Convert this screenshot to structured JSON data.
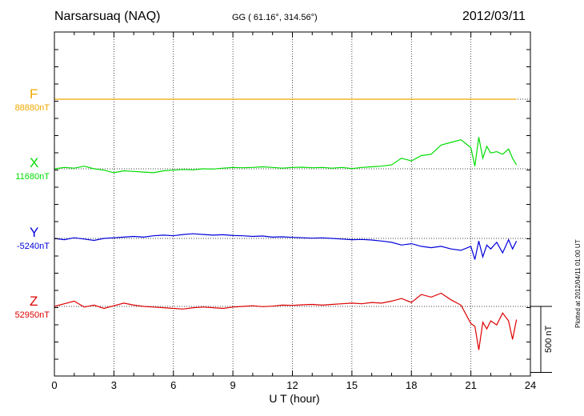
{
  "header": {
    "station": "Narsarsuaq (NAQ)",
    "coords": "GG ( 61.16°, 314.56°)",
    "date": "2012/03/11"
  },
  "footer": {
    "xlabel": "U T (hour)",
    "plotted": "Plotted at 2012/04/11 01:00 UT",
    "scale": "500 nT"
  },
  "chart_data": {
    "type": "line",
    "xlabel": "U T (hour)",
    "xlim": [
      0,
      24
    ],
    "xticks": [
      "0",
      "3",
      "6",
      "9",
      "12",
      "15",
      "18",
      "21",
      "24"
    ],
    "y_unit": "nT",
    "scale_bar_nT": 500,
    "grid": true,
    "series": [
      {
        "name": "F",
        "baseline_label": "88880nT",
        "color": "#f0a800",
        "baseline": 88880,
        "x": [
          0,
          2,
          4,
          6,
          8,
          10,
          12,
          14,
          16,
          18,
          20,
          22,
          23.3
        ],
        "y": [
          88880,
          88880,
          88880,
          88880,
          88880,
          88880,
          88880,
          88880,
          88880,
          88880,
          88880,
          88880,
          88880
        ]
      },
      {
        "name": "X",
        "baseline_label": "11680nT",
        "color": "#00dd00",
        "baseline": 11680,
        "x": [
          0,
          0.5,
          1,
          1.5,
          2,
          2.5,
          3,
          3.5,
          4,
          4.5,
          5,
          5.5,
          6,
          6.5,
          7,
          7.5,
          8,
          8.5,
          9,
          9.5,
          10,
          10.5,
          11,
          11.5,
          12,
          12.5,
          13,
          13.5,
          14,
          14.5,
          15,
          15.5,
          16,
          16.5,
          17,
          17.5,
          18,
          18.5,
          19,
          19.5,
          20,
          20.5,
          21,
          21.2,
          21.4,
          21.6,
          21.8,
          22,
          22.3,
          22.6,
          22.9,
          23.1,
          23.3
        ],
        "y": [
          11680,
          11690,
          11685,
          11700,
          11680,
          11670,
          11650,
          11665,
          11660,
          11655,
          11650,
          11665,
          11670,
          11675,
          11672,
          11680,
          11678,
          11685,
          11690,
          11688,
          11690,
          11695,
          11690,
          11685,
          11690,
          11692,
          11688,
          11690,
          11685,
          11690,
          11682,
          11690,
          11695,
          11700,
          11710,
          11760,
          11740,
          11780,
          11790,
          11860,
          11880,
          11900,
          11840,
          11700,
          11920,
          11760,
          11850,
          11800,
          11810,
          11790,
          11830,
          11760,
          11710
        ]
      },
      {
        "name": "Y",
        "baseline_label": "-5240nT",
        "color": "#0000dd",
        "baseline": -5240,
        "x": [
          0,
          0.5,
          1,
          1.5,
          2,
          2.5,
          3,
          3.5,
          4,
          4.5,
          5,
          5.5,
          6,
          6.5,
          7,
          7.5,
          8,
          8.5,
          9,
          9.5,
          10,
          10.5,
          11,
          11.5,
          12,
          12.5,
          13,
          13.5,
          14,
          14.5,
          15,
          15.5,
          16,
          16.5,
          17,
          17.5,
          18,
          18.5,
          19,
          19.5,
          20,
          20.5,
          21,
          21.2,
          21.4,
          21.6,
          21.8,
          22,
          22.3,
          22.6,
          22.9,
          23.1,
          23.3
        ],
        "y": [
          -5240,
          -5250,
          -5235,
          -5245,
          -5255,
          -5240,
          -5235,
          -5230,
          -5225,
          -5230,
          -5220,
          -5215,
          -5220,
          -5210,
          -5205,
          -5210,
          -5215,
          -5212,
          -5218,
          -5220,
          -5225,
          -5222,
          -5230,
          -5228,
          -5232,
          -5235,
          -5238,
          -5236,
          -5240,
          -5245,
          -5250,
          -5248,
          -5252,
          -5260,
          -5270,
          -5290,
          -5280,
          -5300,
          -5310,
          -5300,
          -5320,
          -5330,
          -5300,
          -5400,
          -5260,
          -5380,
          -5290,
          -5320,
          -5270,
          -5350,
          -5250,
          -5320,
          -5260
        ]
      },
      {
        "name": "Z",
        "baseline_label": "52950nT",
        "color": "#dd0000",
        "baseline": 52950,
        "x": [
          0,
          0.5,
          1,
          1.5,
          2,
          2.5,
          3,
          3.5,
          4,
          4.5,
          5,
          5.5,
          6,
          6.5,
          7,
          7.5,
          8,
          8.5,
          9,
          9.5,
          10,
          10.5,
          11,
          11.5,
          12,
          12.5,
          13,
          13.5,
          14,
          14.5,
          15,
          15.5,
          16,
          16.5,
          17,
          17.5,
          18,
          18.5,
          19,
          19.5,
          20,
          20.5,
          21,
          21.2,
          21.4,
          21.6,
          21.8,
          22,
          22.3,
          22.6,
          22.9,
          23.1,
          23.3
        ],
        "y": [
          52950,
          52970,
          52990,
          52945,
          52960,
          52935,
          52955,
          52975,
          52960,
          52950,
          52945,
          52940,
          52935,
          52930,
          52940,
          52945,
          52940,
          52935,
          52945,
          52950,
          52955,
          52948,
          52952,
          52960,
          52958,
          52962,
          52965,
          52960,
          52965,
          52970,
          52975,
          52970,
          52980,
          52975,
          52990,
          53010,
          52980,
          53040,
          53020,
          53050,
          53000,
          52960,
          52820,
          52800,
          52620,
          52830,
          52780,
          52840,
          52810,
          52900,
          52840,
          52700,
          52850
        ]
      }
    ]
  }
}
